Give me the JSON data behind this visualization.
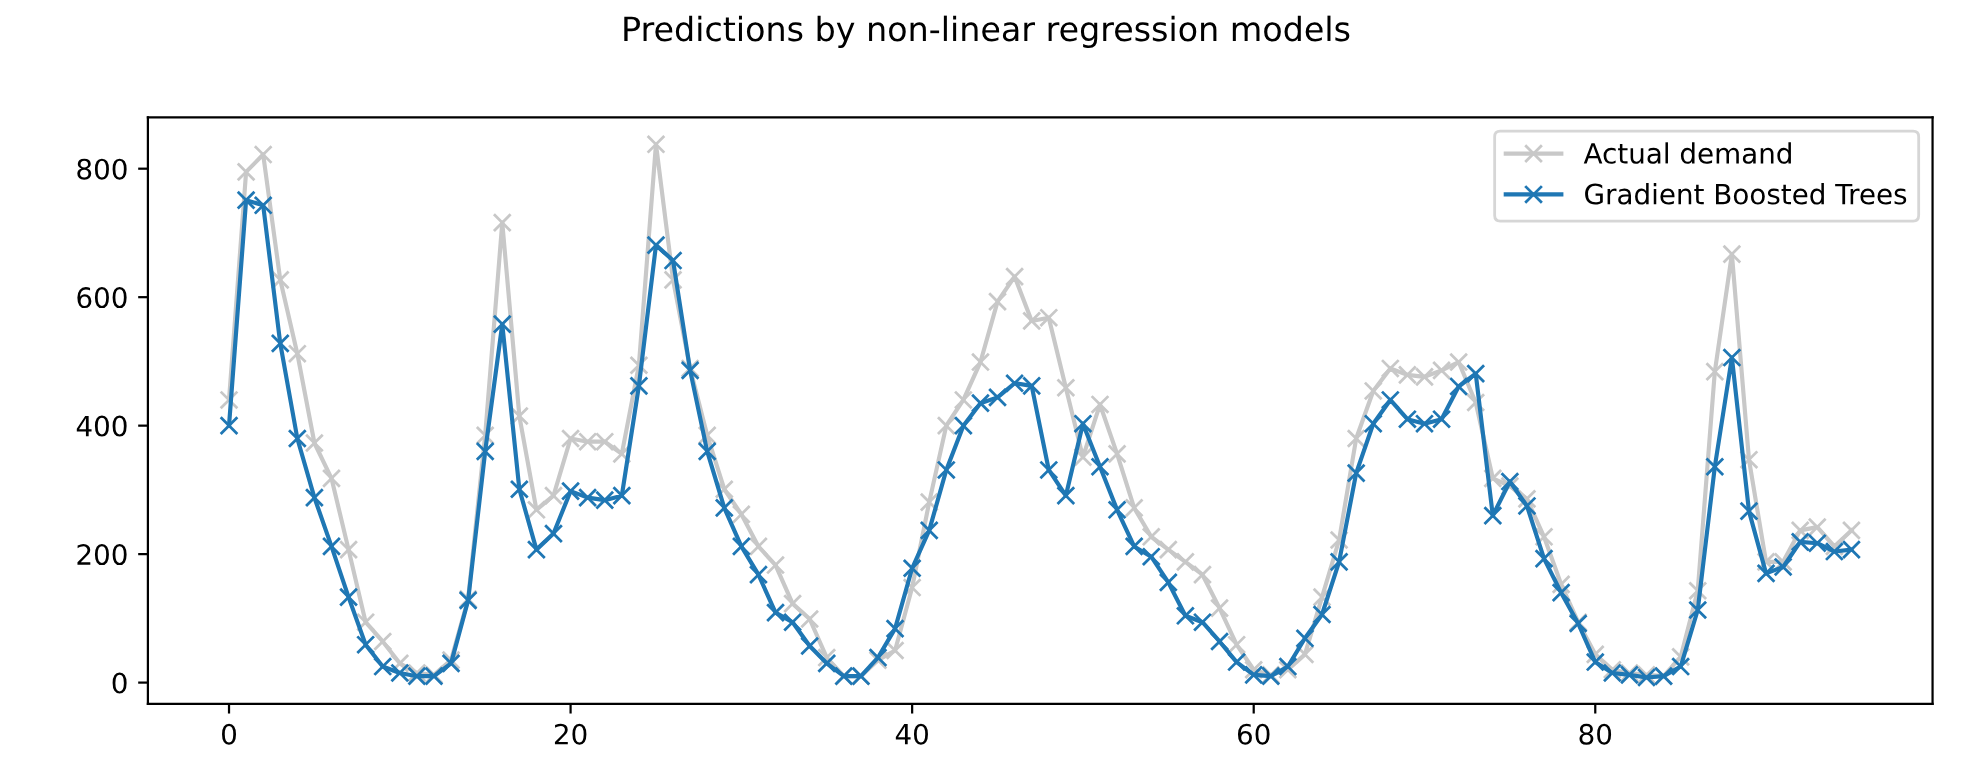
{
  "chart_data": {
    "type": "line",
    "title": "Predictions by non-linear regression models",
    "x": [
      0,
      1,
      2,
      3,
      4,
      5,
      6,
      7,
      8,
      9,
      10,
      11,
      12,
      13,
      14,
      15,
      16,
      17,
      18,
      19,
      20,
      21,
      22,
      23,
      24,
      25,
      26,
      27,
      28,
      29,
      30,
      31,
      32,
      33,
      34,
      35,
      36,
      37,
      38,
      39,
      40,
      41,
      42,
      43,
      44,
      45,
      46,
      47,
      48,
      49,
      50,
      51,
      52,
      53,
      54,
      55,
      56,
      57,
      58,
      59,
      60,
      61,
      62,
      63,
      64,
      65,
      66,
      67,
      68,
      69,
      70,
      71,
      72,
      73,
      74,
      75,
      76,
      77,
      78,
      79,
      80,
      81,
      82,
      83,
      84,
      85,
      86,
      87,
      88,
      89,
      90,
      91,
      92,
      93,
      94,
      95
    ],
    "series": [
      {
        "name": "Actual demand",
        "color": "#c8c8c8",
        "values": [
          440,
          795,
          822,
          627,
          512,
          373,
          318,
          207,
          94,
          64,
          30,
          15,
          12,
          35,
          130,
          385,
          716,
          415,
          269,
          291,
          380,
          375,
          375,
          356,
          494,
          838,
          627,
          489,
          385,
          301,
          262,
          212,
          183,
          123,
          99,
          39,
          10,
          10,
          35,
          50,
          148,
          281,
          400,
          440,
          499,
          593,
          632,
          563,
          568,
          459,
          351,
          433,
          356,
          272,
          227,
          207,
          188,
          168,
          116,
          59,
          20,
          12,
          20,
          44,
          133,
          222,
          380,
          454,
          489,
          479,
          476,
          486,
          499,
          436,
          318,
          306,
          286,
          227,
          153,
          94,
          44,
          20,
          15,
          12,
          10,
          40,
          143,
          484,
          667,
          347,
          188,
          188,
          237,
          242,
          212,
          237
        ]
      },
      {
        "name": "Gradient Boosted Trees",
        "color": "#1f77b4",
        "values": [
          400,
          751,
          743,
          528,
          380,
          288,
          212,
          133,
          59,
          25,
          15,
          10,
          10,
          30,
          128,
          360,
          558,
          301,
          207,
          232,
          298,
          288,
          284,
          291,
          462,
          681,
          657,
          486,
          360,
          272,
          212,
          168,
          109,
          94,
          57,
          30,
          10,
          10,
          39,
          84,
          178,
          237,
          331,
          400,
          435,
          444,
          466,
          462,
          331,
          291,
          403,
          336,
          269,
          212,
          196,
          156,
          104,
          94,
          64,
          32,
          12,
          10,
          25,
          69,
          106,
          188,
          326,
          403,
          440,
          410,
          403,
          410,
          461,
          481,
          260,
          313,
          275,
          193,
          140,
          92,
          32,
          15,
          12,
          8,
          10,
          25,
          113,
          336,
          506,
          267,
          170,
          180,
          219,
          217,
          204,
          207
        ]
      }
    ],
    "marker": "cross",
    "xlim": [
      -4.75,
      99.75
    ],
    "ylim": [
      -33,
      880
    ],
    "xticks": [
      0,
      20,
      40,
      60,
      80
    ],
    "yticks": [
      0,
      200,
      400,
      600,
      800
    ],
    "grid": false,
    "legend": "top right"
  }
}
